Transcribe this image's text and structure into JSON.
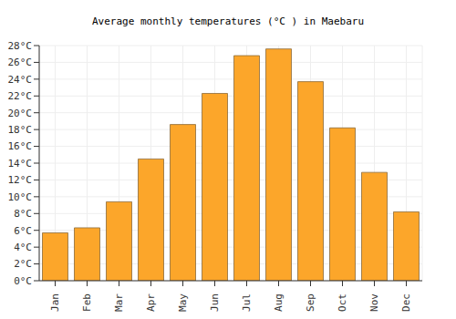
{
  "chart_data": {
    "type": "bar",
    "title": "Average monthly temperatures (°C ) in Maebaru",
    "categories": [
      "Jan",
      "Feb",
      "Mar",
      "Apr",
      "May",
      "Jun",
      "Jul",
      "Aug",
      "Sep",
      "Oct",
      "Nov",
      "Dec"
    ],
    "values": [
      5.7,
      6.3,
      9.4,
      14.5,
      18.6,
      22.3,
      26.8,
      27.6,
      23.7,
      18.2,
      12.9,
      8.2
    ],
    "color": "#fca62a",
    "ylim": [
      0,
      28
    ],
    "yticks": [
      {
        "value": 0,
        "label": "0°C"
      },
      {
        "value": 2,
        "label": "2°C"
      },
      {
        "value": 4,
        "label": "4°C"
      },
      {
        "value": 6,
        "label": "6°C"
      },
      {
        "value": 8,
        "label": "8°C"
      },
      {
        "value": 10,
        "label": "10°C"
      },
      {
        "value": 12,
        "label": "12°C"
      },
      {
        "value": 14,
        "label": "14°C"
      },
      {
        "value": 16,
        "label": "16°C"
      },
      {
        "value": 18,
        "label": "18°C"
      },
      {
        "value": 20,
        "label": "20°C"
      },
      {
        "value": 22,
        "label": "22°C"
      },
      {
        "value": 24,
        "label": "24°C"
      },
      {
        "value": 26,
        "label": "26°C"
      },
      {
        "value": 28,
        "label": "28°C"
      }
    ],
    "grid": true
  }
}
